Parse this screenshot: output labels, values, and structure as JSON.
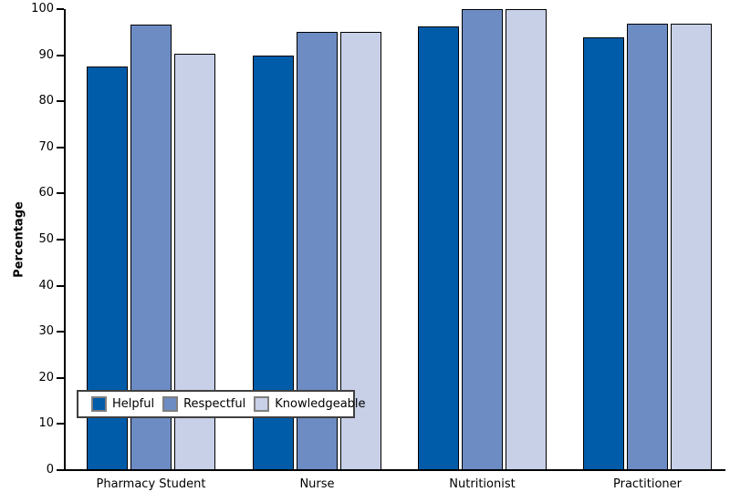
{
  "chart_data": {
    "type": "bar",
    "title": "",
    "xlabel": "",
    "ylabel": "Percentage",
    "ylim": [
      0,
      100
    ],
    "yticks": [
      0,
      10,
      20,
      30,
      40,
      50,
      60,
      70,
      80,
      90,
      100
    ],
    "grid": false,
    "legend_position": "inside-bottom-left",
    "axis_color": "#000000",
    "categories": [
      "Pharmacy Student",
      "Nurse",
      "Nutritionist",
      "Practitioner"
    ],
    "series": [
      {
        "name": "Helpful",
        "color": "#005BA8",
        "values": [
          87.5,
          90.0,
          96.3,
          93.8
        ]
      },
      {
        "name": "Respectful",
        "color": "#6D8CC4",
        "values": [
          96.7,
          95.0,
          100.0,
          96.8
        ]
      },
      {
        "name": "Knowledgeable",
        "color": "#C8D0E8",
        "values": [
          90.4,
          95.0,
          100.0,
          96.8
        ]
      }
    ]
  }
}
